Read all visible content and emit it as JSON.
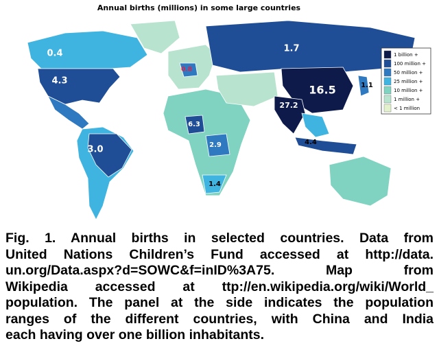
{
  "figure": {
    "title": "Annual births (millions) in some large countries",
    "map_labels": [
      "0.4",
      "1.7",
      "4.3",
      "16.5",
      "1.1",
      "27.2",
      "0.8",
      "6.3",
      "2.9",
      "3.0",
      "4.4",
      "1.4"
    ],
    "legend": [
      {
        "label": "1 billion +",
        "color": "#0d1a4a"
      },
      {
        "label": "100 million +",
        "color": "#1f4e96"
      },
      {
        "label": "50 million +",
        "color": "#2f79c0"
      },
      {
        "label": "25 million +",
        "color": "#3fb4e0"
      },
      {
        "label": "10 million +",
        "color": "#7fd3c0"
      },
      {
        "label": "1 million +",
        "color": "#b8e4cf"
      },
      {
        "label": "< 1 million",
        "color": "#e3f1cc"
      }
    ],
    "caption": [
      "Fig. 1. Annual births in selected countries. Data from",
      "United Nations Children’s Fund accessed at http://data.",
      "un.org/Data.aspx?d=SOWC&f=inID%3A75.  Map  from",
      "Wikipedia accessed at ttp://en.wikipedia.org/wiki/World_",
      "population. The panel at the side indicates the population",
      "ranges of the different countries, with China and India",
      "each having over one billion inhabitants."
    ]
  }
}
